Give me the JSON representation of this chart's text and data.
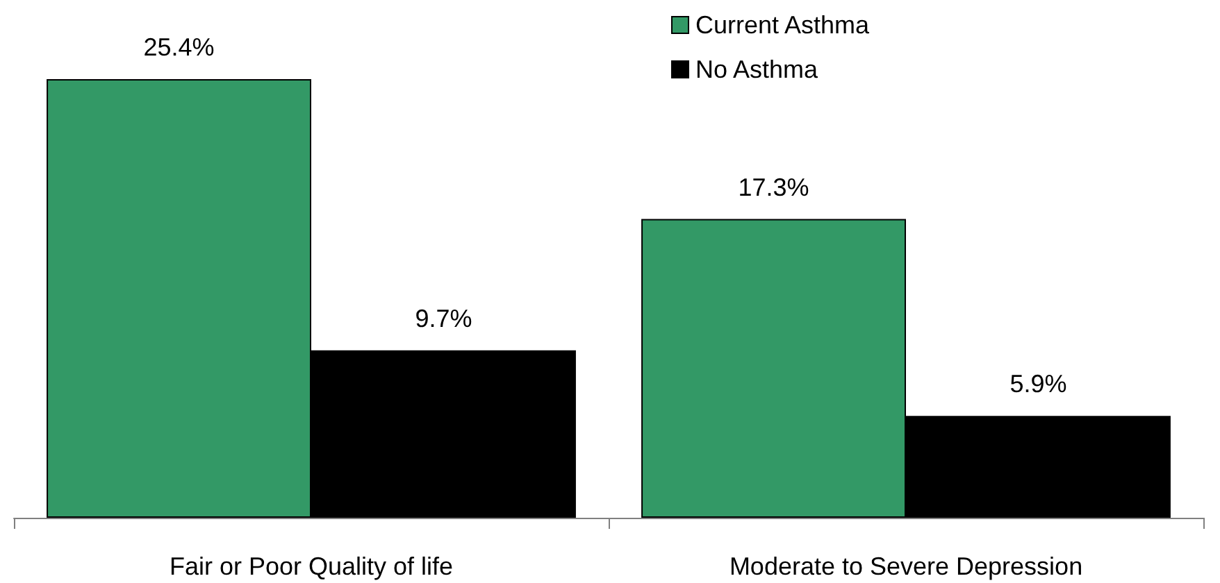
{
  "chart_data": {
    "type": "bar",
    "categories": [
      "Fair or Poor Quality of life",
      "Moderate to Severe Depression"
    ],
    "series": [
      {
        "name": "Current Asthma",
        "color": "#339966",
        "values": [
          25.4,
          17.3
        ],
        "value_labels": [
          "25.4%",
          "17.3%"
        ]
      },
      {
        "name": "No Asthma",
        "color": "#000000",
        "values": [
          9.7,
          5.9
        ],
        "value_labels": [
          "9.7%",
          "5.9%"
        ]
      }
    ],
    "legend": "top"
  }
}
